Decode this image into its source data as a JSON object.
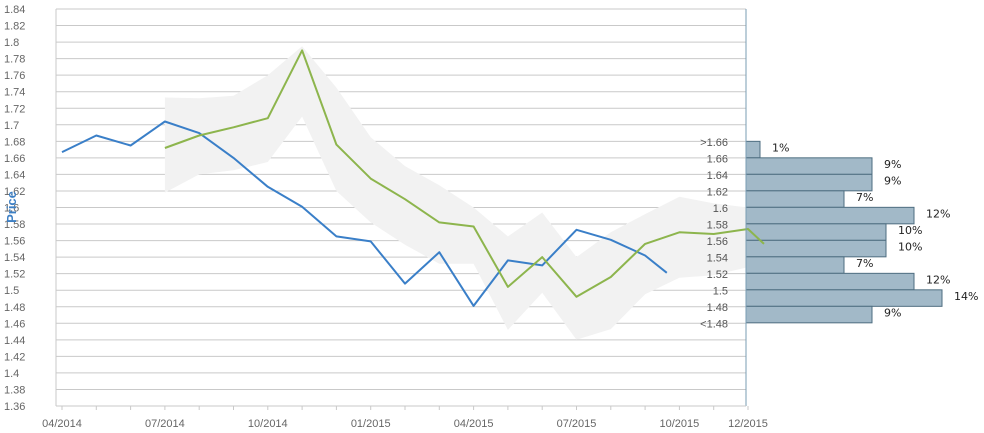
{
  "chart_data": {
    "type": "line",
    "ylabel": "Price",
    "ylim": [
      1.36,
      1.84
    ],
    "y_ticks": [
      "1.36",
      "1.38",
      "1.4",
      "1.42",
      "1.44",
      "1.46",
      "1.48",
      "1.5",
      "1.52",
      "1.54",
      "1.56",
      "1.58",
      "1.6",
      "1.62",
      "1.64",
      "1.66",
      "1.68",
      "1.7",
      "1.72",
      "1.74",
      "1.76",
      "1.78",
      "1.8",
      "1.82",
      "1.84"
    ],
    "x_ticks": [
      "04/2014",
      "07/2014",
      "10/2014",
      "01/2015",
      "04/2015",
      "07/2015",
      "10/2015",
      "12/2015"
    ],
    "grid": true,
    "series": [
      {
        "color": "#3a7fc8",
        "x": [
          "2014-04",
          "2014-05",
          "2014-06",
          "2014-07",
          "2014-08",
          "2014-09",
          "2014-10",
          "2014-11",
          "2014-12",
          "2015-01",
          "2015-02",
          "2015-03",
          "2015-04",
          "2015-05",
          "2015-06",
          "2015-07",
          "2015-08",
          "2015-09",
          "2015-09-20"
        ],
        "values": [
          1.667,
          1.687,
          1.675,
          1.704,
          1.69,
          1.66,
          1.625,
          1.601,
          1.565,
          1.559,
          1.508,
          1.546,
          1.481,
          1.536,
          1.53,
          1.573,
          1.561,
          1.542,
          1.521
        ]
      },
      {
        "color": "#8db54d",
        "x": [
          "2014-07",
          "2014-08",
          "2014-09",
          "2014-10",
          "2014-11",
          "2014-12",
          "2015-01",
          "2015-02",
          "2015-03",
          "2015-04",
          "2015-05",
          "2015-06",
          "2015-07",
          "2015-08",
          "2015-09",
          "2015-10",
          "2015-11",
          "2015-12",
          "2015-12-15"
        ],
        "values": [
          1.672,
          1.687,
          1.697,
          1.708,
          1.79,
          1.676,
          1.635,
          1.61,
          1.582,
          1.577,
          1.504,
          1.54,
          1.492,
          1.516,
          1.556,
          1.57,
          1.568,
          1.574,
          1.556
        ]
      }
    ],
    "band": {
      "color": "#f2f2f2",
      "x": [
        "2014-07",
        "2014-08",
        "2014-09",
        "2014-10",
        "2014-11",
        "2014-12",
        "2015-01",
        "2015-02",
        "2015-03",
        "2015-04",
        "2015-05",
        "2015-06",
        "2015-07",
        "2015-08",
        "2015-09",
        "2015-10",
        "2015-11",
        "2015-12"
      ],
      "upper": [
        1.733,
        1.732,
        1.735,
        1.76,
        1.795,
        1.745,
        1.685,
        1.65,
        1.627,
        1.6,
        1.565,
        1.594,
        1.54,
        1.57,
        1.592,
        1.613,
        1.605,
        1.6
      ],
      "lower": [
        1.618,
        1.64,
        1.645,
        1.655,
        1.71,
        1.62,
        1.582,
        1.555,
        1.532,
        1.532,
        1.452,
        1.497,
        1.44,
        1.453,
        1.495,
        1.515,
        1.518,
        1.528
      ]
    },
    "histogram": {
      "bins": [
        ">1.66",
        "1.66",
        "1.64",
        "1.62",
        "1.6",
        "1.58",
        "1.56",
        "1.54",
        "1.52",
        "1.5",
        "1.48",
        "<1.48"
      ],
      "percent_labels": [
        "1%",
        "9%",
        "9%",
        "7%",
        "12%",
        "10%",
        "10%",
        "7%",
        "12%",
        "14%",
        "9%"
      ],
      "values": [
        1,
        9,
        9,
        7,
        12,
        10,
        10,
        7,
        12,
        14,
        9
      ],
      "bar_color": "#a2b9c8"
    }
  }
}
